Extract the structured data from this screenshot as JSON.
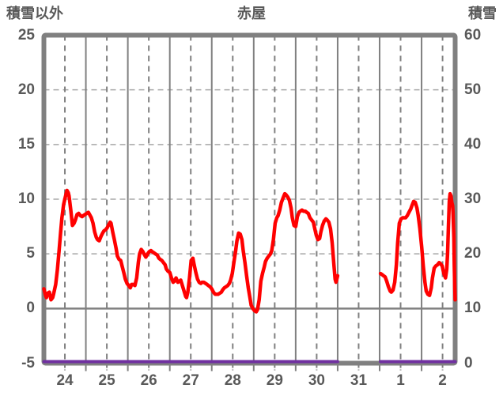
{
  "header": {
    "left_label": "積雪以外",
    "title": "赤屋",
    "right_label": "積雪"
  },
  "colors": {
    "text": "#595959",
    "grid": "#808080",
    "grid_light": "#a8a8a8",
    "frame": "#808080",
    "series_main": "#ff0000",
    "series_snow": "#7030a0",
    "background": "#ffffff"
  },
  "chart_data": {
    "type": "line",
    "title": "赤屋",
    "left_axis": {
      "label": "積雪以外",
      "min": -5,
      "max": 25,
      "ticks": [
        25,
        20,
        15,
        10,
        5,
        0,
        -5
      ]
    },
    "right_axis": {
      "label": "積雪",
      "min": 0,
      "max": 60,
      "ticks": [
        60,
        50,
        40,
        30,
        20,
        10,
        0
      ]
    },
    "x_range": [
      0,
      9.8
    ],
    "x_axis": {
      "tick_labels": [
        "24",
        "25",
        "26",
        "27",
        "28",
        "29",
        "30",
        "31",
        "1",
        "2"
      ],
      "tick_positions": [
        0.5,
        1.5,
        2.5,
        3.5,
        4.5,
        5.5,
        6.5,
        7.5,
        8.5,
        9.5
      ]
    },
    "grid": {
      "x_solid": [
        1,
        2,
        3,
        4,
        5,
        6,
        7,
        8,
        9
      ],
      "x_dashed": [
        0.5,
        1.5,
        2.5,
        3.5,
        4.5,
        5.5,
        6.5,
        7.5,
        8.5,
        9.5
      ],
      "y_dashed": [
        20,
        15,
        10,
        5
      ],
      "y_solid": [
        0
      ]
    },
    "series": [
      {
        "name": "積雪以外",
        "axis": "left",
        "color": "#ff0000",
        "segments": [
          [
            [
              0.0,
              1.8
            ],
            [
              0.04,
              1.2
            ],
            [
              0.06,
              1.0
            ],
            [
              0.09,
              1.4
            ],
            [
              0.13,
              1.5
            ],
            [
              0.17,
              0.8
            ],
            [
              0.21,
              1.0
            ],
            [
              0.23,
              1.3
            ],
            [
              0.28,
              2.2
            ],
            [
              0.32,
              3.5
            ],
            [
              0.36,
              5.2
            ],
            [
              0.4,
              7.0
            ],
            [
              0.43,
              8.3
            ],
            [
              0.47,
              9.5
            ],
            [
              0.51,
              10.2
            ],
            [
              0.55,
              10.8
            ],
            [
              0.58,
              10.6
            ],
            [
              0.6,
              10.3
            ],
            [
              0.64,
              9.0
            ],
            [
              0.68,
              7.6
            ],
            [
              0.72,
              7.8
            ],
            [
              0.75,
              8.1
            ],
            [
              0.79,
              8.6
            ],
            [
              0.83,
              8.7
            ],
            [
              0.87,
              8.5
            ],
            [
              0.91,
              8.4
            ],
            [
              0.94,
              8.5
            ],
            [
              0.98,
              8.6
            ],
            [
              1.02,
              8.7
            ],
            [
              1.06,
              8.8
            ],
            [
              1.09,
              8.6
            ],
            [
              1.13,
              8.3
            ],
            [
              1.17,
              7.8
            ],
            [
              1.21,
              7.0
            ],
            [
              1.25,
              6.5
            ],
            [
              1.28,
              6.3
            ],
            [
              1.32,
              6.2
            ],
            [
              1.36,
              6.6
            ],
            [
              1.4,
              6.9
            ],
            [
              1.43,
              7.1
            ],
            [
              1.47,
              7.2
            ],
            [
              1.51,
              7.4
            ],
            [
              1.55,
              7.7
            ],
            [
              1.58,
              7.9
            ],
            [
              1.6,
              7.8
            ],
            [
              1.64,
              7.0
            ],
            [
              1.68,
              6.3
            ],
            [
              1.72,
              5.5
            ],
            [
              1.75,
              4.8
            ],
            [
              1.79,
              4.5
            ],
            [
              1.83,
              4.4
            ],
            [
              1.87,
              3.8
            ],
            [
              1.91,
              3.2
            ],
            [
              1.94,
              2.7
            ],
            [
              1.98,
              2.3
            ],
            [
              2.02,
              2.1
            ],
            [
              2.06,
              1.9
            ],
            [
              2.09,
              2.2
            ],
            [
              2.13,
              2.2
            ],
            [
              2.17,
              2.1
            ],
            [
              2.21,
              2.8
            ],
            [
              2.25,
              4.2
            ],
            [
              2.28,
              5.0
            ],
            [
              2.32,
              5.4
            ],
            [
              2.36,
              5.2
            ],
            [
              2.4,
              4.9
            ],
            [
              2.43,
              4.7
            ],
            [
              2.47,
              5.0
            ],
            [
              2.51,
              5.2
            ],
            [
              2.55,
              5.3
            ],
            [
              2.58,
              5.2
            ],
            [
              2.62,
              5.1
            ],
            [
              2.66,
              5.0
            ],
            [
              2.7,
              4.9
            ],
            [
              2.74,
              4.6
            ],
            [
              2.77,
              4.5
            ],
            [
              2.81,
              4.4
            ],
            [
              2.85,
              4.2
            ],
            [
              2.89,
              4.0
            ],
            [
              2.92,
              3.6
            ],
            [
              2.96,
              3.4
            ],
            [
              3.0,
              3.3
            ],
            [
              3.04,
              2.8
            ],
            [
              3.08,
              2.4
            ],
            [
              3.11,
              2.5
            ],
            [
              3.15,
              2.8
            ],
            [
              3.19,
              2.4
            ],
            [
              3.23,
              2.5
            ],
            [
              3.26,
              2.6
            ],
            [
              3.3,
              2.1
            ],
            [
              3.34,
              1.6
            ],
            [
              3.38,
              1.1
            ],
            [
              3.4,
              1.0
            ],
            [
              3.43,
              1.5
            ],
            [
              3.47,
              2.8
            ],
            [
              3.51,
              4.4
            ],
            [
              3.55,
              4.6
            ],
            [
              3.58,
              4.0
            ],
            [
              3.62,
              3.3
            ],
            [
              3.66,
              2.7
            ],
            [
              3.7,
              2.4
            ],
            [
              3.74,
              2.3
            ],
            [
              3.77,
              2.4
            ],
            [
              3.81,
              2.4
            ],
            [
              3.85,
              2.3
            ],
            [
              3.89,
              2.2
            ],
            [
              3.92,
              2.1
            ],
            [
              3.96,
              2.0
            ],
            [
              4.0,
              1.8
            ],
            [
              4.04,
              1.5
            ],
            [
              4.08,
              1.3
            ],
            [
              4.11,
              1.3
            ],
            [
              4.15,
              1.3
            ],
            [
              4.19,
              1.4
            ],
            [
              4.23,
              1.5
            ],
            [
              4.26,
              1.7
            ],
            [
              4.3,
              1.9
            ],
            [
              4.34,
              2.0
            ],
            [
              4.38,
              2.1
            ],
            [
              4.42,
              2.3
            ],
            [
              4.45,
              2.6
            ],
            [
              4.49,
              3.2
            ],
            [
              4.53,
              4.3
            ],
            [
              4.57,
              5.3
            ],
            [
              4.6,
              6.2
            ],
            [
              4.64,
              6.9
            ],
            [
              4.68,
              6.8
            ],
            [
              4.72,
              6.3
            ],
            [
              4.75,
              5.3
            ],
            [
              4.79,
              4.2
            ],
            [
              4.83,
              3.0
            ],
            [
              4.87,
              1.9
            ],
            [
              4.91,
              1.0
            ],
            [
              4.94,
              0.3
            ],
            [
              4.98,
              0.0
            ],
            [
              5.02,
              -0.2
            ],
            [
              5.06,
              -0.3
            ],
            [
              5.09,
              -0.1
            ],
            [
              5.13,
              0.8
            ],
            [
              5.17,
              2.5
            ],
            [
              5.21,
              3.2
            ],
            [
              5.25,
              3.8
            ],
            [
              5.28,
              4.3
            ],
            [
              5.32,
              4.6
            ],
            [
              5.36,
              4.8
            ],
            [
              5.4,
              5.0
            ],
            [
              5.43,
              5.3
            ],
            [
              5.47,
              6.3
            ],
            [
              5.51,
              7.8
            ],
            [
              5.55,
              8.3
            ],
            [
              5.58,
              8.5
            ],
            [
              5.62,
              9.0
            ],
            [
              5.66,
              9.7
            ],
            [
              5.7,
              10.1
            ],
            [
              5.74,
              10.5
            ],
            [
              5.77,
              10.4
            ],
            [
              5.81,
              10.2
            ],
            [
              5.85,
              9.9
            ],
            [
              5.89,
              9.2
            ],
            [
              5.92,
              8.3
            ],
            [
              5.96,
              7.6
            ],
            [
              6.0,
              7.5
            ],
            [
              6.04,
              8.4
            ],
            [
              6.08,
              8.8
            ],
            [
              6.11,
              8.9
            ],
            [
              6.15,
              9.0
            ],
            [
              6.19,
              8.9
            ],
            [
              6.23,
              8.9
            ],
            [
              6.26,
              8.8
            ],
            [
              6.3,
              8.7
            ],
            [
              6.34,
              8.3
            ],
            [
              6.38,
              8.1
            ],
            [
              6.42,
              7.9
            ],
            [
              6.45,
              7.4
            ],
            [
              6.49,
              6.7
            ],
            [
              6.53,
              6.3
            ],
            [
              6.57,
              6.4
            ],
            [
              6.6,
              7.0
            ],
            [
              6.64,
              7.6
            ],
            [
              6.68,
              8.0
            ],
            [
              6.72,
              8.2
            ],
            [
              6.75,
              8.1
            ],
            [
              6.79,
              7.9
            ],
            [
              6.83,
              7.3
            ],
            [
              6.87,
              6.0
            ],
            [
              6.91,
              4.0
            ],
            [
              6.94,
              2.7
            ],
            [
              6.96,
              2.4
            ],
            [
              6.98,
              2.7
            ],
            [
              7.0,
              3.0
            ]
          ],
          [
            [
              8.02,
              3.2
            ],
            [
              8.06,
              3.1
            ],
            [
              8.09,
              3.0
            ],
            [
              8.13,
              2.9
            ],
            [
              8.17,
              2.5
            ],
            [
              8.21,
              2.0
            ],
            [
              8.25,
              1.6
            ],
            [
              8.28,
              1.5
            ],
            [
              8.32,
              1.7
            ],
            [
              8.36,
              2.4
            ],
            [
              8.4,
              4.0
            ],
            [
              8.43,
              6.0
            ],
            [
              8.47,
              7.8
            ],
            [
              8.51,
              8.2
            ],
            [
              8.55,
              8.3
            ],
            [
              8.58,
              8.3
            ],
            [
              8.62,
              8.3
            ],
            [
              8.66,
              8.5
            ],
            [
              8.7,
              8.8
            ],
            [
              8.74,
              9.1
            ],
            [
              8.77,
              9.4
            ],
            [
              8.81,
              9.8
            ],
            [
              8.85,
              9.7
            ],
            [
              8.89,
              9.2
            ],
            [
              8.92,
              8.5
            ],
            [
              8.96,
              7.3
            ],
            [
              9.0,
              5.7
            ],
            [
              9.04,
              3.9
            ],
            [
              9.08,
              2.4
            ],
            [
              9.11,
              1.6
            ],
            [
              9.15,
              1.3
            ],
            [
              9.19,
              1.2
            ],
            [
              9.23,
              1.9
            ],
            [
              9.26,
              2.8
            ],
            [
              9.3,
              3.7
            ],
            [
              9.34,
              3.9
            ],
            [
              9.38,
              4.0
            ],
            [
              9.42,
              4.2
            ],
            [
              9.45,
              4.1
            ],
            [
              9.49,
              3.9
            ],
            [
              9.53,
              3.2
            ],
            [
              9.57,
              2.8
            ],
            [
              9.6,
              3.6
            ],
            [
              9.62,
              5.0
            ],
            [
              9.64,
              7.5
            ],
            [
              9.66,
              9.8
            ],
            [
              9.68,
              10.5
            ],
            [
              9.7,
              10.3
            ],
            [
              9.72,
              9.7
            ],
            [
              9.74,
              9.4
            ],
            [
              9.75,
              8.8
            ],
            [
              9.77,
              6.5
            ],
            [
              9.78,
              4.0
            ],
            [
              9.79,
              2.0
            ],
            [
              9.8,
              0.8
            ]
          ]
        ]
      },
      {
        "name": "積雪",
        "axis": "right",
        "color": "#7030a0",
        "segments": [
          [
            [
              0.0,
              0
            ],
            [
              7.0,
              0
            ]
          ],
          [
            [
              8.02,
              0
            ],
            [
              9.8,
              0
            ]
          ]
        ]
      }
    ]
  }
}
